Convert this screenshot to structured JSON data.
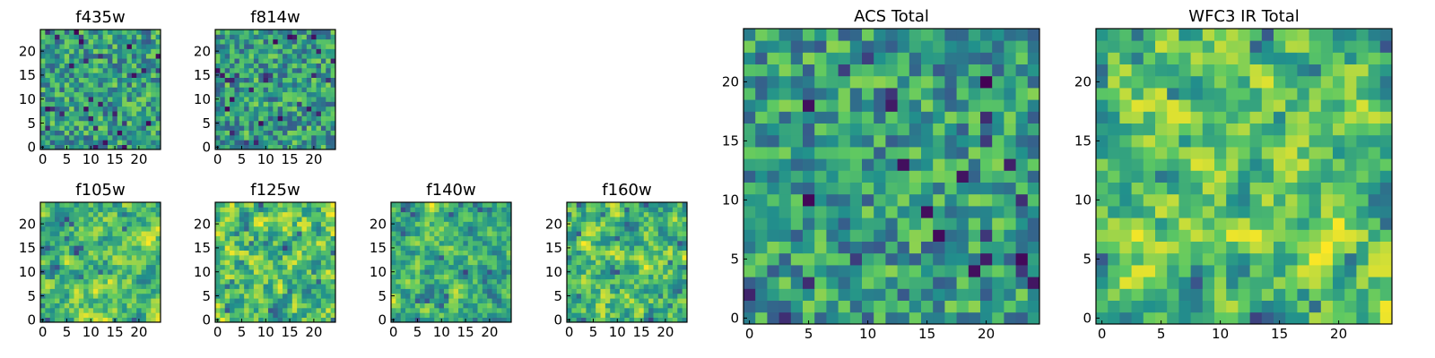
{
  "chart_data": [
    {
      "type": "heatmap",
      "title": "f435w",
      "grid_size": 25,
      "xticks": [
        "0",
        "5",
        "10",
        "15",
        "20"
      ],
      "yticks": [
        "0",
        "5",
        "10",
        "15",
        "20"
      ],
      "colormap": "viridis",
      "seed": 11,
      "smooth": 0
    },
    {
      "type": "heatmap",
      "title": "f814w",
      "grid_size": 25,
      "xticks": [
        "0",
        "5",
        "10",
        "15",
        "20"
      ],
      "yticks": [
        "0",
        "5",
        "10",
        "15",
        "20"
      ],
      "colormap": "viridis",
      "seed": 23,
      "smooth": 0
    },
    {
      "type": "heatmap",
      "title": "f105w",
      "grid_size": 25,
      "xticks": [
        "0",
        "5",
        "10",
        "15",
        "20"
      ],
      "yticks": [
        "0",
        "5",
        "10",
        "15",
        "20"
      ],
      "colormap": "viridis",
      "seed": 37,
      "smooth": 1
    },
    {
      "type": "heatmap",
      "title": "f125w",
      "grid_size": 25,
      "xticks": [
        "0",
        "5",
        "10",
        "15",
        "20"
      ],
      "yticks": [
        "0",
        "5",
        "10",
        "15",
        "20"
      ],
      "colormap": "viridis",
      "seed": 41,
      "smooth": 1
    },
    {
      "type": "heatmap",
      "title": "f140w",
      "grid_size": 25,
      "xticks": [
        "0",
        "5",
        "10",
        "15",
        "20"
      ],
      "yticks": [
        "0",
        "5",
        "10",
        "15",
        "20"
      ],
      "colormap": "viridis",
      "seed": 53,
      "smooth": 1
    },
    {
      "type": "heatmap",
      "title": "f160w",
      "grid_size": 25,
      "xticks": [
        "0",
        "5",
        "10",
        "15",
        "20"
      ],
      "yticks": [
        "0",
        "5",
        "10",
        "15",
        "20"
      ],
      "colormap": "viridis",
      "seed": 67,
      "smooth": 1
    },
    {
      "type": "heatmap",
      "title": "ACS Total",
      "grid_size": 25,
      "xticks": [
        "0",
        "5",
        "10",
        "15",
        "20"
      ],
      "yticks": [
        "0",
        "5",
        "10",
        "15",
        "20"
      ],
      "colormap": "viridis",
      "seed": 79,
      "smooth": 0
    },
    {
      "type": "heatmap",
      "title": "WFC3 IR Total",
      "grid_size": 25,
      "xticks": [
        "0",
        "5",
        "10",
        "15",
        "20"
      ],
      "yticks": [
        "0",
        "5",
        "10",
        "15",
        "20"
      ],
      "colormap": "viridis",
      "seed": 97,
      "smooth": 1
    }
  ],
  "colors": {
    "viridis_stops": [
      "#440154",
      "#3b528b",
      "#21918c",
      "#5ec962",
      "#fde725"
    ],
    "axes_frame": "#000000"
  }
}
